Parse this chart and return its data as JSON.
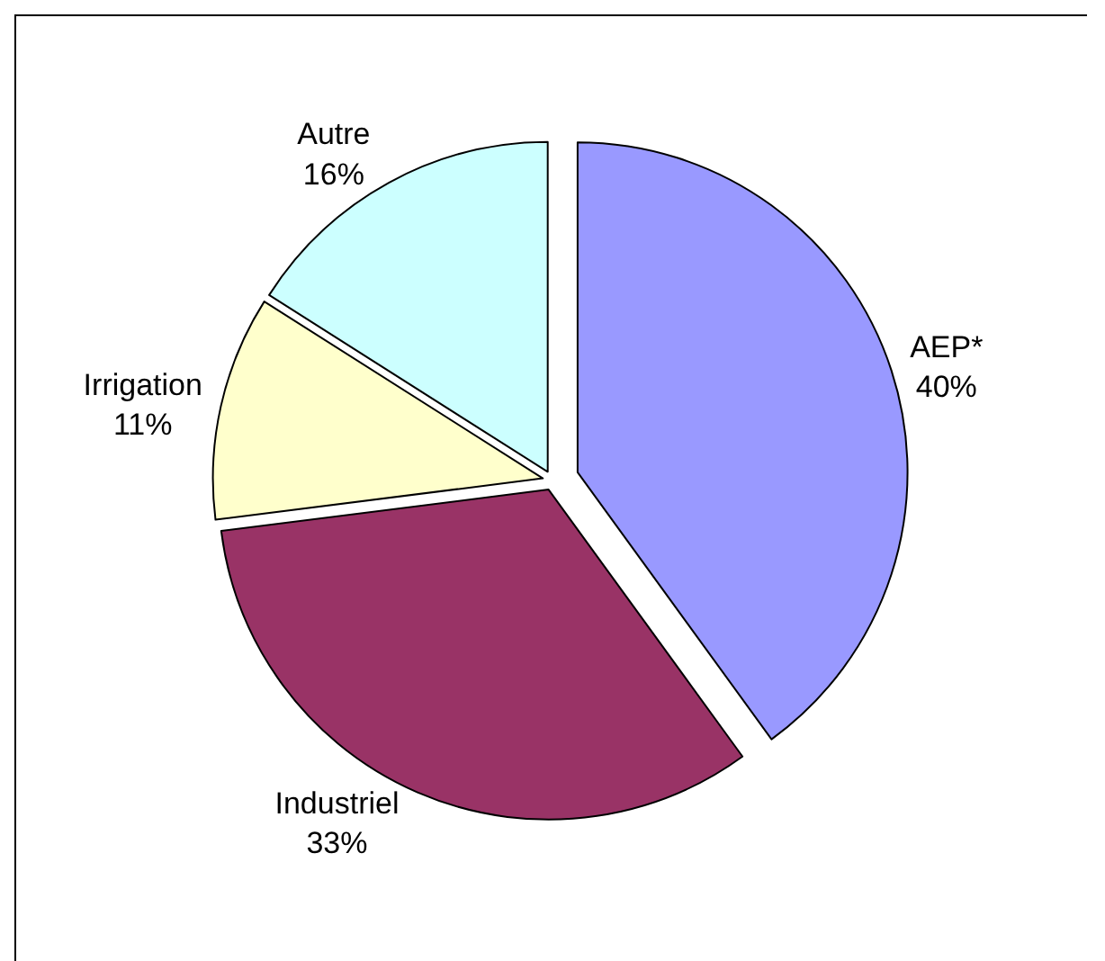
{
  "chart_data": {
    "type": "pie",
    "categories": [
      "AEP*",
      "Industriel",
      "Irrigation",
      "Autre"
    ],
    "values": [
      40,
      33,
      11,
      16
    ],
    "value_labels": [
      "40%",
      "33%",
      "11%",
      "16%"
    ],
    "colors": [
      "#9999ff",
      "#993366",
      "#ffffcc",
      "#ccffff"
    ],
    "legend": false
  }
}
